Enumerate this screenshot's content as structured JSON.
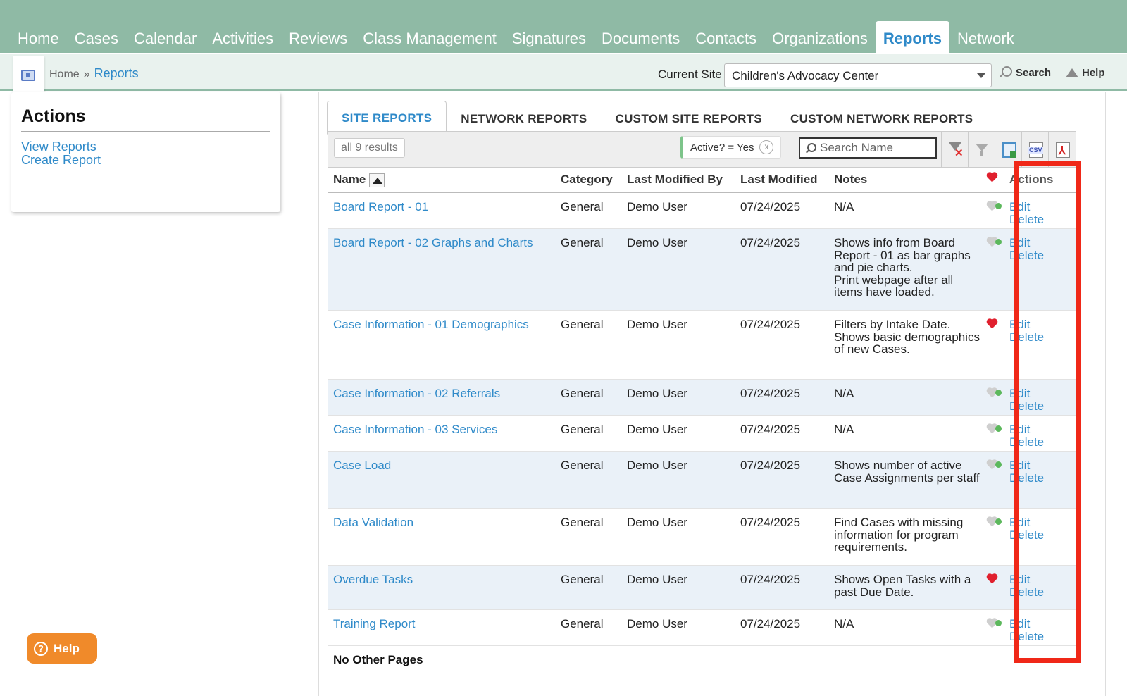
{
  "nav": {
    "tabs": [
      "Home",
      "Cases",
      "Calendar",
      "Activities",
      "Reviews",
      "Class Management",
      "Signatures",
      "Documents",
      "Contacts",
      "Organizations",
      "Reports",
      "Network"
    ],
    "active": "Reports"
  },
  "subbar": {
    "breadcrumb_home": "Home",
    "breadcrumb_sep": "»",
    "breadcrumb_current": "Reports",
    "current_site_label": "Current Site",
    "current_site_value": "Children's Advocacy Center",
    "search_label": "Search",
    "help_label": "Help"
  },
  "actions": {
    "title": "Actions",
    "view_reports": "View Reports",
    "create_report": "Create Report"
  },
  "report_tabs": [
    "SITE REPORTS",
    "NETWORK REPORTS",
    "CUSTOM SITE REPORTS",
    "CUSTOM NETWORK REPORTS"
  ],
  "toolbar": {
    "results": "all 9 results",
    "filter_chip": "Active? = Yes",
    "filter_chip_clear": "x",
    "search_placeholder": "Search Name"
  },
  "table": {
    "headers": {
      "name": "Name",
      "category": "Category",
      "last_modified_by": "Last Modified By",
      "last_modified": "Last Modified",
      "notes": "Notes",
      "actions": "Actions"
    },
    "rows": [
      {
        "name": "Board Report - 01",
        "category": "General",
        "by": "Demo User",
        "modified": "07/24/2025",
        "notes": "N/A",
        "favorite": false,
        "edit": "Edit",
        "delete": "Delete"
      },
      {
        "name": "Board Report - 02 Graphs and Charts",
        "category": "General",
        "by": "Demo User",
        "modified": "07/24/2025",
        "notes": "Shows info from Board Report - 01 as bar graphs and pie charts.\nPrint webpage after all items have loaded.",
        "favorite": false,
        "edit": "Edit",
        "delete": "Delete"
      },
      {
        "name": "Case Information - 01 Demographics",
        "category": "General",
        "by": "Demo User",
        "modified": "07/24/2025",
        "notes": "Filters by Intake Date.\nShows basic demographics of new Cases.",
        "favorite": true,
        "edit": "Edit",
        "delete": "Delete"
      },
      {
        "name": "Case Information - 02 Referrals",
        "category": "General",
        "by": "Demo User",
        "modified": "07/24/2025",
        "notes": "N/A",
        "favorite": false,
        "edit": "Edit",
        "delete": "Delete"
      },
      {
        "name": "Case Information - 03 Services",
        "category": "General",
        "by": "Demo User",
        "modified": "07/24/2025",
        "notes": "N/A",
        "favorite": false,
        "edit": "Edit",
        "delete": "Delete"
      },
      {
        "name": "Case Load",
        "category": "General",
        "by": "Demo User",
        "modified": "07/24/2025",
        "notes": "Shows number of active Case Assignments per staff",
        "favorite": false,
        "edit": "Edit",
        "delete": "Delete"
      },
      {
        "name": "Data Validation",
        "category": "General",
        "by": "Demo User",
        "modified": "07/24/2025",
        "notes": "Find Cases with missing information for program requirements.",
        "favorite": false,
        "edit": "Edit",
        "delete": "Delete"
      },
      {
        "name": "Overdue Tasks",
        "category": "General",
        "by": "Demo User",
        "modified": "07/24/2025",
        "notes": "Shows Open Tasks with a past Due Date.",
        "favorite": true,
        "edit": "Edit",
        "delete": "Delete"
      },
      {
        "name": "Training Report",
        "category": "General",
        "by": "Demo User",
        "modified": "07/24/2025",
        "notes": "N/A",
        "favorite": false,
        "edit": "Edit",
        "delete": "Delete"
      }
    ],
    "footer": "No Other Pages"
  },
  "help_button": "Help",
  "colors": {
    "nav_bg": "#8fbaa5",
    "link": "#2f8ac9",
    "highlight": "#f02818",
    "help_button": "#f08a2a"
  }
}
